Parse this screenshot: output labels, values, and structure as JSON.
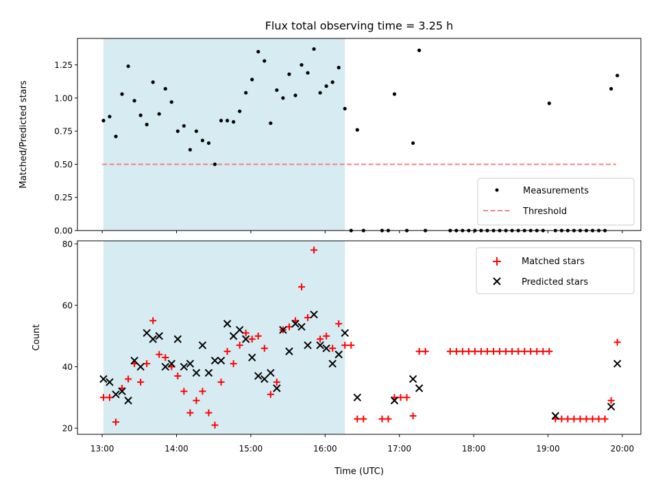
{
  "chart_data": [
    {
      "type": "scatter",
      "title": "Flux total observing time = 3.25 h",
      "xlabel": "",
      "ylabel": "Matched/Predicted stars",
      "xlim": [
        "12:40",
        "20:15"
      ],
      "ylim": [
        0,
        1.45
      ],
      "yticks": [
        0.0,
        0.25,
        0.5,
        0.75,
        1.0,
        1.25
      ],
      "ytick_labels": [
        "0.00",
        "0.25",
        "0.50",
        "0.75",
        "1.00",
        "1.25"
      ],
      "grid": false,
      "legend_position": "lower-right",
      "shaded_region": {
        "start": "13:01",
        "end": "16:16",
        "color": "#add8e6"
      },
      "threshold": {
        "name": "Threshold",
        "value": 0.5,
        "from": "13:00",
        "to": "19:55",
        "color": "#f08080",
        "style": "dashed"
      },
      "series": [
        {
          "name": "Measurements",
          "color": "#000000",
          "marker": "dot",
          "x": [
            "13:01",
            "13:06",
            "13:11",
            "13:16",
            "13:21",
            "13:26",
            "13:31",
            "13:36",
            "13:41",
            "13:46",
            "13:51",
            "13:56",
            "14:01",
            "14:06",
            "14:11",
            "14:16",
            "14:21",
            "14:26",
            "14:31",
            "14:36",
            "14:41",
            "14:46",
            "14:51",
            "14:56",
            "15:01",
            "15:06",
            "15:11",
            "15:16",
            "15:21",
            "15:26",
            "15:31",
            "15:36",
            "15:41",
            "15:46",
            "15:51",
            "15:56",
            "16:01",
            "16:06",
            "16:11",
            "16:16",
            "16:21",
            "16:26",
            "16:31",
            "16:46",
            "16:51",
            "16:56",
            "17:06",
            "17:11",
            "17:16",
            "17:21",
            "17:41",
            "17:46",
            "17:51",
            "17:56",
            "18:01",
            "18:06",
            "18:11",
            "18:16",
            "18:21",
            "18:26",
            "18:31",
            "18:36",
            "18:41",
            "18:46",
            "18:51",
            "18:56",
            "19:01",
            "19:06",
            "19:11",
            "19:16",
            "19:21",
            "19:26",
            "19:31",
            "19:36",
            "19:41",
            "19:46",
            "19:51",
            "19:56"
          ],
          "y": [
            0.83,
            0.86,
            0.71,
            1.03,
            1.24,
            0.98,
            0.87,
            0.8,
            1.12,
            0.88,
            1.07,
            0.97,
            0.75,
            0.79,
            0.61,
            0.75,
            0.68,
            0.66,
            0.5,
            0.83,
            0.83,
            0.82,
            0.9,
            1.04,
            1.14,
            1.35,
            1.28,
            0.81,
            1.06,
            1.0,
            1.18,
            1.02,
            1.25,
            1.19,
            1.37,
            1.04,
            1.09,
            1.12,
            1.23,
            0.92,
            0.0,
            0.76,
            0.0,
            0.0,
            0.0,
            1.03,
            0.0,
            0.66,
            1.36,
            0.0,
            0.0,
            0.0,
            0.0,
            0.0,
            0.0,
            0.0,
            0.0,
            0.0,
            0.0,
            0.0,
            0.0,
            0.0,
            0.0,
            0.0,
            0.0,
            0.0,
            0.96,
            0.0,
            0.0,
            0.0,
            0.0,
            0.0,
            0.0,
            0.0,
            0.0,
            0.0,
            1.07,
            1.17
          ]
        }
      ]
    },
    {
      "type": "scatter",
      "title": "",
      "xlabel": "Time (UTC)",
      "ylabel": "Count",
      "xlim": [
        "12:40",
        "20:15"
      ],
      "ylim": [
        18,
        81
      ],
      "yticks": [
        20,
        40,
        60,
        80
      ],
      "ytick_labels": [
        "20",
        "40",
        "60",
        "80"
      ],
      "xticks": [
        "13:00",
        "14:00",
        "15:00",
        "16:00",
        "17:00",
        "18:00",
        "19:00",
        "20:00"
      ],
      "xtick_labels": [
        "13:00",
        "14:00",
        "15:00",
        "16:00",
        "17:00",
        "18:00",
        "19:00",
        "20:00"
      ],
      "grid": false,
      "legend_position": "upper-right",
      "shaded_region": {
        "start": "13:01",
        "end": "16:16",
        "color": "#add8e6"
      },
      "series": [
        {
          "name": "Matched stars",
          "color": "#ff0000",
          "marker": "plus",
          "x": [
            "13:01",
            "13:06",
            "13:11",
            "13:16",
            "13:21",
            "13:26",
            "13:31",
            "13:36",
            "13:41",
            "13:46",
            "13:51",
            "13:56",
            "14:01",
            "14:06",
            "14:11",
            "14:16",
            "14:21",
            "14:26",
            "14:31",
            "14:36",
            "14:41",
            "14:46",
            "14:51",
            "14:56",
            "15:01",
            "15:06",
            "15:11",
            "15:16",
            "15:21",
            "15:26",
            "15:31",
            "15:36",
            "15:41",
            "15:46",
            "15:51",
            "15:56",
            "16:01",
            "16:06",
            "16:11",
            "16:16",
            "16:21",
            "16:26",
            "16:31",
            "16:46",
            "16:51",
            "16:56",
            "17:01",
            "17:06",
            "17:11",
            "17:16",
            "17:21",
            "17:41",
            "17:46",
            "17:51",
            "17:56",
            "18:01",
            "18:06",
            "18:11",
            "18:16",
            "18:21",
            "18:26",
            "18:31",
            "18:36",
            "18:41",
            "18:46",
            "18:51",
            "18:56",
            "19:01",
            "19:06",
            "19:11",
            "19:16",
            "19:21",
            "19:26",
            "19:31",
            "19:36",
            "19:41",
            "19:46",
            "19:51",
            "19:56"
          ],
          "y": [
            30,
            30,
            22,
            33,
            36,
            41,
            35,
            41,
            55,
            44,
            43,
            40,
            37,
            32,
            25,
            29,
            32,
            25,
            21,
            35,
            45,
            41,
            47,
            51,
            49,
            50,
            46,
            31,
            35,
            52,
            53,
            55,
            66,
            56,
            78,
            49,
            50,
            46,
            54,
            47,
            47,
            23,
            23,
            23,
            23,
            30,
            30,
            30,
            24,
            45,
            45,
            45,
            45,
            45,
            45,
            45,
            45,
            45,
            45,
            45,
            45,
            45,
            45,
            45,
            45,
            45,
            45,
            45,
            23,
            23,
            23,
            23,
            23,
            23,
            23,
            23,
            23,
            29,
            48
          ]
        },
        {
          "name": "Predicted stars",
          "color": "#000000",
          "marker": "cross",
          "x": [
            "13:01",
            "13:06",
            "13:11",
            "13:16",
            "13:21",
            "13:26",
            "13:31",
            "13:36",
            "13:41",
            "13:46",
            "13:51",
            "13:56",
            "14:01",
            "14:06",
            "14:11",
            "14:16",
            "14:21",
            "14:26",
            "14:31",
            "14:36",
            "14:41",
            "14:46",
            "14:51",
            "14:56",
            "15:01",
            "15:06",
            "15:11",
            "15:16",
            "15:21",
            "15:26",
            "15:31",
            "15:36",
            "15:41",
            "15:46",
            "15:51",
            "15:56",
            "16:01",
            "16:06",
            "16:11",
            "16:16",
            "16:26",
            "16:56",
            "17:11",
            "17:16",
            "19:06",
            "19:51",
            "19:56"
          ],
          "y": [
            36,
            35,
            31,
            32,
            29,
            42,
            40,
            51,
            49,
            50,
            40,
            41,
            49,
            40,
            41,
            38,
            47,
            38,
            42,
            42,
            54,
            50,
            52,
            49,
            43,
            37,
            36,
            38,
            33,
            52,
            45,
            54,
            53,
            47,
            57,
            47,
            46,
            41,
            44,
            51,
            30,
            29,
            36,
            33,
            24,
            27,
            41
          ]
        }
      ]
    }
  ]
}
